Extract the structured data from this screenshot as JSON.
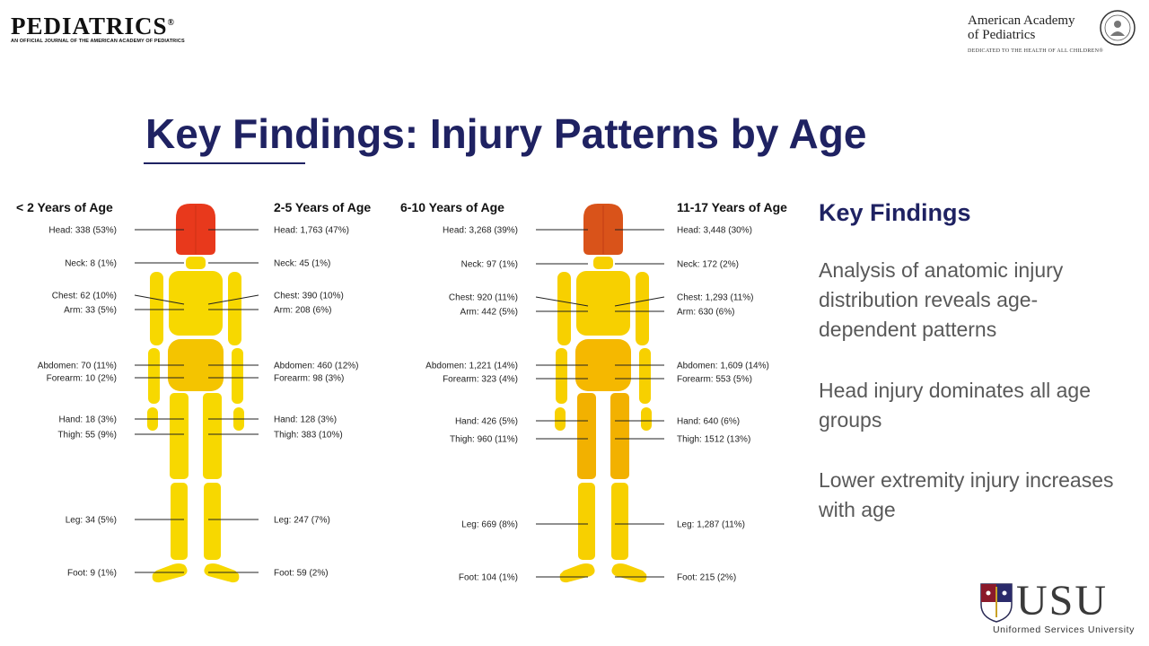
{
  "header": {
    "journal_name": "PEDIATRICS",
    "journal_mark": "®",
    "journal_subtitle": "AN OFFICIAL JOURNAL OF THE AMERICAN ACADEMY OF PEDIATRICS",
    "org_line1": "American Academy",
    "org_line2": "of Pediatrics",
    "org_tagline": "DEDICATED TO THE HEALTH OF ALL CHILDREN®"
  },
  "title": "Key Findings: Injury Patterns by Age",
  "diagram": {
    "panels": [
      {
        "groups": [
          "< 2 Years of Age",
          "2-5 Years of Age"
        ],
        "head_color": "#e8391c",
        "body_color": "#f7d800",
        "torso_color": "#f4c400",
        "leg_color": "#f7d800",
        "left": [
          "Head: 338 (53%)",
          "Neck: 8 (1%)",
          "Chest: 62 (10%)",
          "Arm: 33 (5%)",
          "Abdomen: 70 (11%)",
          "Forearm: 10 (2%)",
          "Hand: 18 (3%)",
          "Thigh: 55 (9%)",
          "Leg: 34 (5%)",
          "Foot: 9 (1%)"
        ],
        "right": [
          "Head: 1,763 (47%)",
          "Neck: 45 (1%)",
          "Chest: 390 (10%)",
          "Arm: 208 (6%)",
          "Abdomen: 460 (12%)",
          "Forearm: 98 (3%)",
          "Hand: 128 (3%)",
          "Thigh: 383 (10%)",
          "Leg: 247 (7%)",
          "Foot: 59 (2%)"
        ]
      },
      {
        "groups": [
          "6-10 Years of Age",
          "11-17 Years of Age"
        ],
        "head_color": "#d9531a",
        "body_color": "#f7d000",
        "torso_color": "#f5b800",
        "leg_color": "#f2b100",
        "left": [
          "Head: 3,268 (39%)",
          "Neck: 97 (1%)",
          "Chest: 920 (11%)",
          "Arm: 442 (5%)",
          "Abdomen: 1,221 (14%)",
          "Forearm: 323 (4%)",
          "Hand: 426 (5%)",
          "Thigh: 960 (11%)",
          "Leg: 669 (8%)",
          "Foot: 104 (1%)"
        ],
        "right": [
          "Head: 3,448 (30%)",
          "Neck: 172 (2%)",
          "Chest: 1,293 (11%)",
          "Arm: 630 (6%)",
          "Abdomen: 1,609 (14%)",
          "Forearm: 553 (5%)",
          "Hand: 640 (6%)",
          "Thigh: 1512 (13%)",
          "Leg: 1,287 (11%)",
          "Foot: 215 (2%)"
        ]
      }
    ]
  },
  "key_findings": {
    "heading": "Key Findings",
    "points": [
      "Analysis of anatomic injury distribution reveals age-dependent patterns",
      "Head injury dominates all age groups",
      "Lower extremity injury increases with age"
    ]
  },
  "footer": {
    "university_short": "USU",
    "university_name": "Uniformed Services University"
  }
}
